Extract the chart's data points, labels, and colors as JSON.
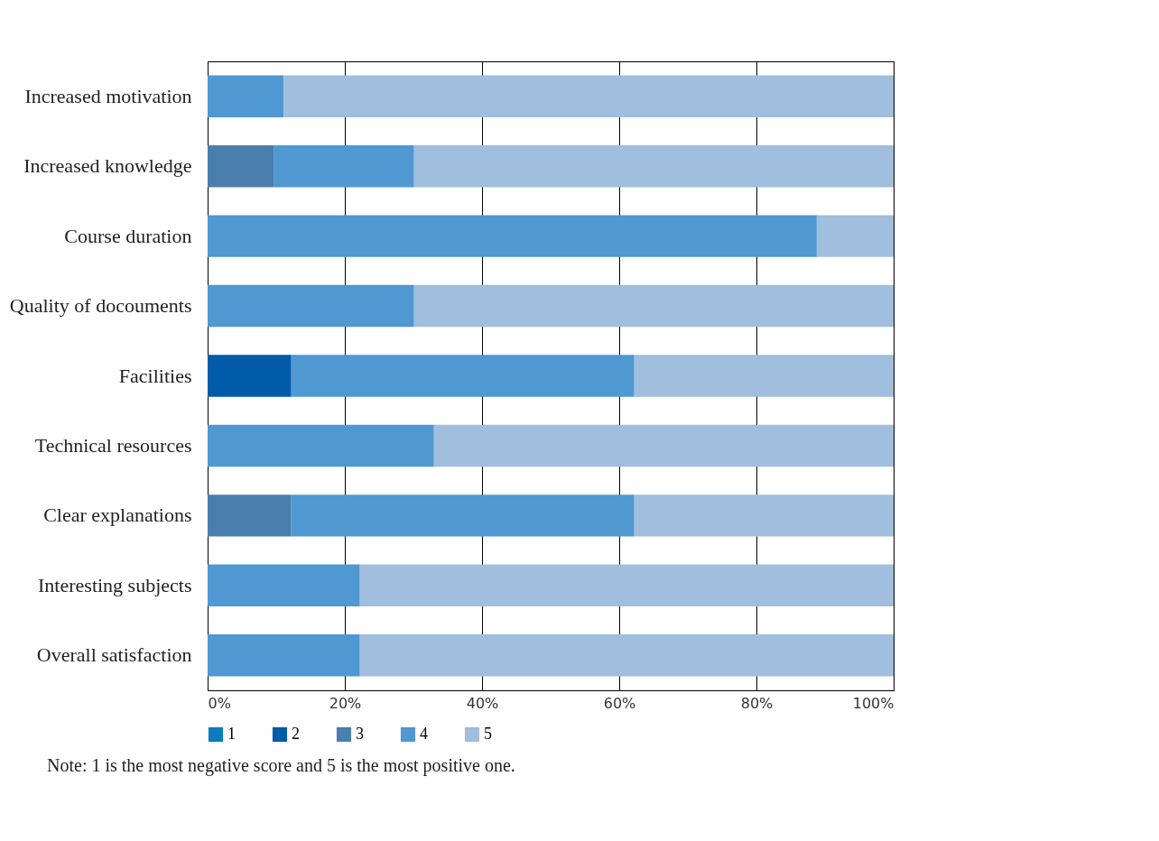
{
  "chart_data": {
    "type": "bar",
    "orientation": "horizontal",
    "stacked": true,
    "categories": [
      "Increased motivation",
      "Increased knowledge",
      "Course duration",
      "Quality of docouments",
      "Facilities",
      "Technical resources",
      "Clear explanations",
      "Interesting subjects",
      "Overall satisfaction"
    ],
    "series": [
      {
        "name": "1",
        "color": "#0b7cc1",
        "values": [
          0,
          0,
          0,
          0,
          0,
          0,
          0,
          0,
          0
        ]
      },
      {
        "name": "2",
        "color": "#005bab",
        "values": [
          0,
          0,
          0,
          0,
          12.2,
          0,
          0,
          0,
          0
        ]
      },
      {
        "name": "3",
        "color": "#4a7fad",
        "values": [
          0,
          9.7,
          0,
          0,
          0,
          0,
          12.2,
          0,
          0
        ]
      },
      {
        "name": "4",
        "color": "#4f98d1",
        "values": [
          11.1,
          20.4,
          88.8,
          30.1,
          50,
          33,
          50,
          22.2,
          22.2
        ]
      },
      {
        "name": "5",
        "color": "#a0bedd",
        "values": [
          88.9,
          69.9,
          11.2,
          69.9,
          37.8,
          67,
          37.8,
          77.8,
          77.8
        ]
      }
    ],
    "xlim": [
      0,
      100
    ],
    "xticks": [
      {
        "value": 0,
        "label": "0%"
      },
      {
        "value": 20,
        "label": "20%"
      },
      {
        "value": 40,
        "label": "40%"
      },
      {
        "value": 60,
        "label": "60%"
      },
      {
        "value": 80,
        "label": "80%"
      },
      {
        "value": 100,
        "label": "100%"
      }
    ],
    "grid": "x",
    "legend": "bottom",
    "annotations": [
      "Note: 1 is the most negative score and 5 is the most positive one."
    ]
  }
}
